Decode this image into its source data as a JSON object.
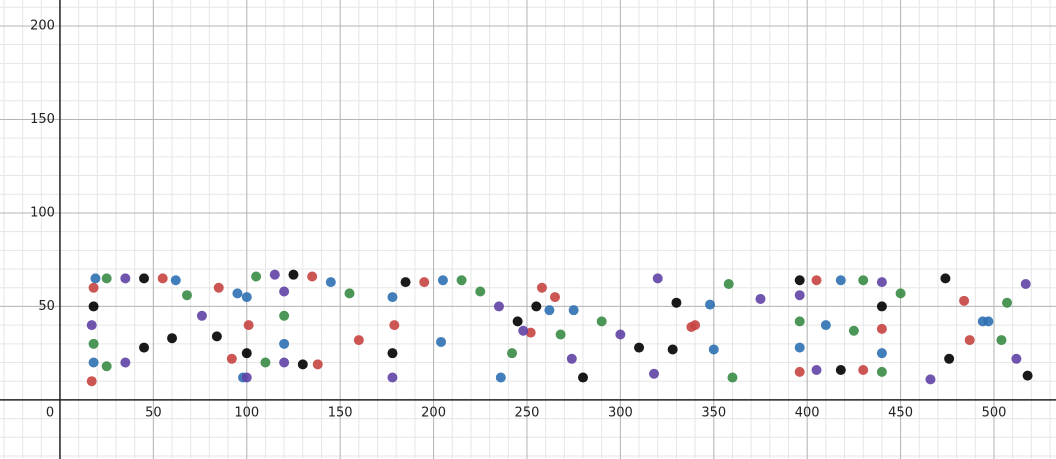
{
  "chart_data": {
    "type": "scatter",
    "grid": true,
    "xlim": [
      -32.1,
      533.2
    ],
    "ylim": [
      -31.6,
      213.9
    ],
    "xticks": [
      0,
      50,
      100,
      150,
      200,
      250,
      300,
      350,
      400,
      450,
      500
    ],
    "yticks": [
      50,
      100,
      150,
      200
    ],
    "series": [
      {
        "color": "#c74440",
        "x": [
          17,
          18,
          55,
          92,
          85,
          135,
          101,
          138,
          195,
          179,
          252,
          258,
          265,
          338,
          340,
          396,
          405,
          440,
          430,
          487,
          484,
          160
        ],
        "values": [
          10,
          60,
          65,
          22,
          60,
          66,
          40,
          19,
          63,
          40,
          36,
          60,
          55,
          39,
          40,
          15,
          64,
          38,
          16,
          32,
          53,
          32
        ]
      },
      {
        "color": "#2d70b3",
        "x": [
          18,
          19,
          62,
          98,
          95,
          145,
          100,
          120,
          205,
          178,
          236,
          262,
          275,
          348,
          350,
          396,
          418,
          440,
          410,
          497,
          494,
          204
        ],
        "values": [
          20,
          65,
          64,
          12,
          57,
          63,
          55,
          30,
          64,
          55,
          12,
          48,
          48,
          51,
          27,
          28,
          64,
          25,
          40,
          42,
          42,
          31
        ]
      },
      {
        "color": "#388c46",
        "x": [
          18,
          25,
          68,
          25,
          105,
          155,
          110,
          120,
          215,
          225,
          242,
          268,
          290,
          358,
          360,
          396,
          430,
          440,
          425,
          507,
          504,
          450
        ],
        "values": [
          30,
          65,
          56,
          18,
          66,
          57,
          20,
          45,
          64,
          58,
          25,
          35,
          42,
          62,
          12,
          42,
          64,
          15,
          37,
          52,
          32,
          57
        ]
      },
      {
        "color": "#6042a6",
        "x": [
          17,
          35,
          76,
          35,
          115,
          100,
          120,
          120,
          178,
          235,
          248,
          274,
          318,
          320,
          300,
          396,
          440,
          405,
          466,
          517,
          512,
          375
        ],
        "values": [
          40,
          65,
          45,
          20,
          67,
          12,
          20,
          58,
          12,
          50,
          37,
          22,
          14,
          65,
          35,
          56,
          63,
          16,
          11,
          62,
          22,
          54
        ]
      },
      {
        "color": "#000000",
        "x": [
          18,
          45,
          84,
          45,
          125,
          100,
          130,
          185,
          178,
          245,
          255,
          280,
          328,
          330,
          310,
          396,
          440,
          418,
          476,
          474,
          518,
          60
        ],
        "values": [
          50,
          65,
          34,
          28,
          67,
          25,
          19,
          63,
          25,
          42,
          50,
          12,
          27,
          52,
          28,
          64,
          50,
          16,
          22,
          65,
          13,
          33
        ]
      }
    ]
  }
}
